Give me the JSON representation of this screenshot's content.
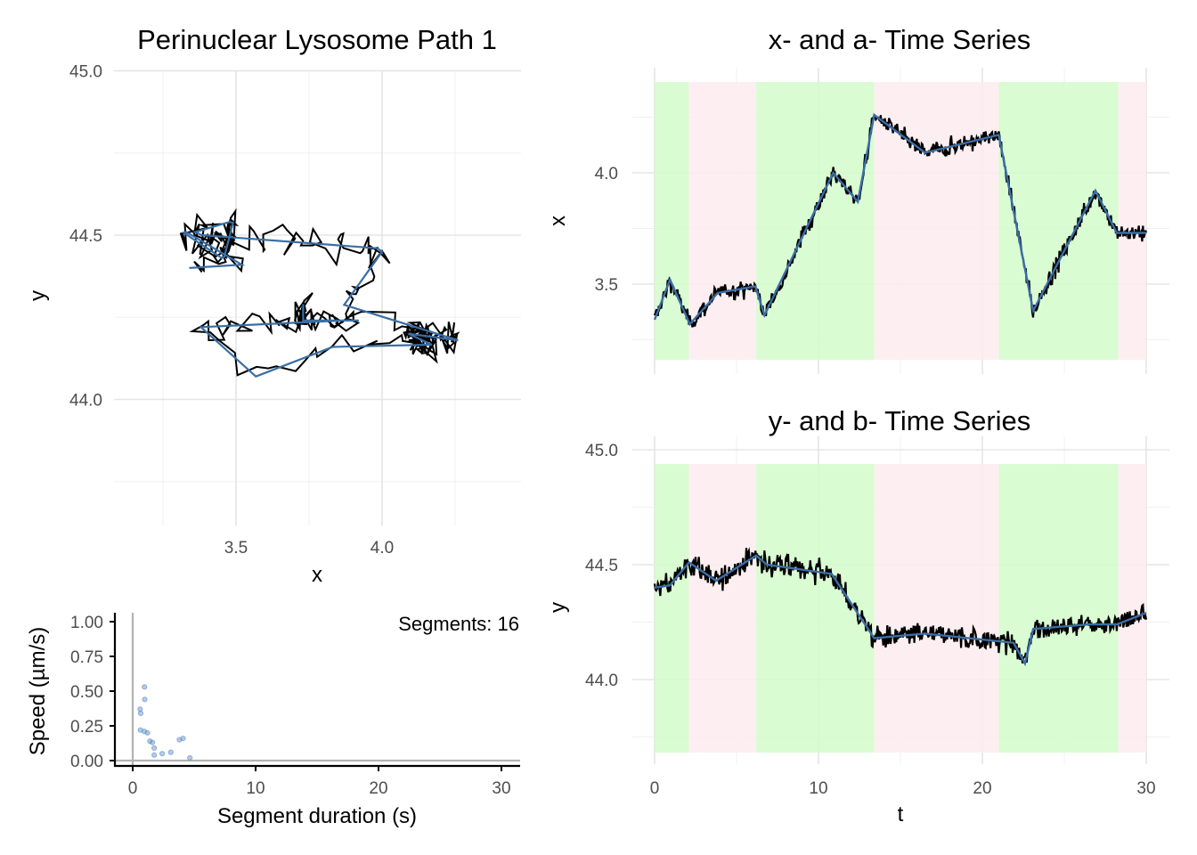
{
  "chart_data": [
    {
      "type": "line",
      "panel": "path",
      "title": "Perinuclear Lysosome Path 1",
      "xlabel": "x",
      "ylabel": "y",
      "xlim": [
        3.12,
        4.47
      ],
      "ylim": [
        43.72,
        45.0
      ],
      "xticks": [
        "3.5",
        "4.0"
      ],
      "yticks": [
        "44.0",
        "44.5",
        "45.0"
      ],
      "series": [
        {
          "name": "observed path",
          "color": "#000000"
        },
        {
          "name": "segment fit",
          "color": "#3a6ea5"
        }
      ]
    },
    {
      "type": "scatter",
      "panel": "speed",
      "xlabel": "Segment duration (s)",
      "ylabel": "Speed (µm/s)",
      "annotation": "Segments: 16",
      "xlim": [
        -1.5,
        31.5
      ],
      "ylim": [
        -0.04,
        1.04
      ],
      "xticks": [
        "0",
        "10",
        "20",
        "30"
      ],
      "yticks": [
        "0.00",
        "0.25",
        "0.50",
        "0.75",
        "1.00"
      ],
      "point_color": "#5b8cc4",
      "x": [
        0.96,
        0.98,
        0.6,
        0.65,
        0.63,
        0.94,
        1.2,
        1.4,
        1.6,
        1.75,
        1.75,
        2.4,
        3.1,
        3.8,
        4.1,
        4.65
      ],
      "y": [
        0.53,
        0.44,
        0.37,
        0.34,
        0.22,
        0.21,
        0.2,
        0.14,
        0.13,
        0.09,
        0.04,
        0.05,
        0.06,
        0.15,
        0.16,
        0.02
      ]
    },
    {
      "type": "line",
      "panel": "x-series",
      "title": "x- and a- Time Series",
      "xlabel": "",
      "ylabel": "x",
      "xlim": [
        -1.3,
        31.4
      ],
      "ylim": [
        3.16,
        4.47
      ],
      "yticks": [
        "3.5",
        "4.0"
      ],
      "fit_t": [
        0,
        0.94,
        2.15,
        3.85,
        6.15,
        6.7,
        10.9,
        12.4,
        13.4,
        16.5,
        21.0,
        23.1,
        26.9,
        28.2,
        30
      ],
      "fit_value": [
        3.34,
        3.52,
        3.32,
        3.46,
        3.49,
        3.36,
        4.0,
        3.87,
        4.26,
        4.09,
        4.17,
        3.38,
        3.92,
        3.73,
        3.73
      ],
      "states": [
        {
          "start": 0,
          "end": 2.1,
          "state": "green"
        },
        {
          "start": 2.1,
          "end": 6.2,
          "state": "pink"
        },
        {
          "start": 6.2,
          "end": 13.4,
          "state": "green"
        },
        {
          "start": 13.4,
          "end": 21.0,
          "state": "pink"
        },
        {
          "start": 21.0,
          "end": 28.3,
          "state": "green"
        },
        {
          "start": 28.3,
          "end": 30,
          "state": "pink"
        }
      ],
      "state_colors": {
        "green": "#d3fccb",
        "pink": "#fdecef"
      },
      "fit_color": "#3a6ea5"
    },
    {
      "type": "line",
      "panel": "y-series",
      "title": "y- and b- Time Series",
      "xlabel": "t",
      "ylabel": "y",
      "xlim": [
        -1.3,
        31.4
      ],
      "ylim": [
        43.65,
        45.06
      ],
      "xticks": [
        "0",
        "10",
        "20",
        "30"
      ],
      "yticks": [
        "44.0",
        "44.5",
        "45.0"
      ],
      "fit_t": [
        0,
        0.94,
        2.1,
        3.75,
        6.2,
        6.85,
        10.8,
        13.4,
        16.5,
        21.9,
        22.6,
        23.1,
        26.5,
        28.2,
        30
      ],
      "fit_value": [
        44.4,
        44.41,
        44.51,
        44.43,
        44.54,
        44.5,
        44.46,
        44.18,
        44.2,
        44.16,
        44.07,
        44.22,
        44.24,
        44.24,
        44.29
      ],
      "fit_color": "#3a6ea5"
    }
  ]
}
